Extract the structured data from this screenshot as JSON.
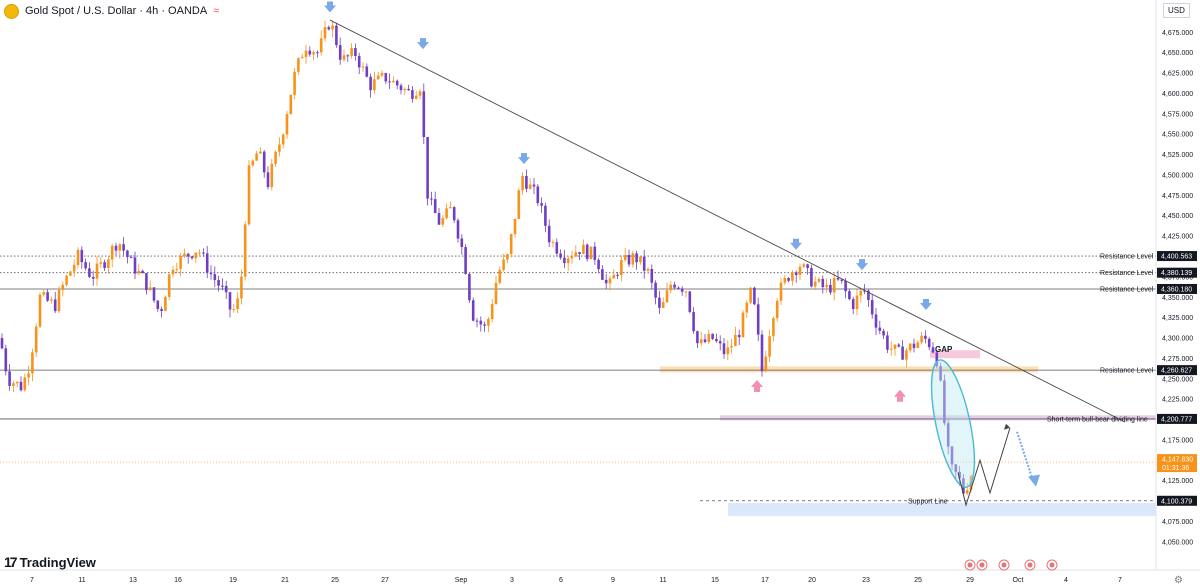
{
  "header": {
    "title": "Gold Spot / U.S. Dollar · 4h · OANDA",
    "currency": "USD"
  },
  "brand": "TradingView",
  "colors": {
    "bull": "#f7931a",
    "bear": "#6e3fc4",
    "trend": "#4a4a4a",
    "arrow_blue": "#7aa8e8",
    "arrow_pink": "#f48fb1",
    "gap_zone": "#f8c8dc",
    "support_zone": "#dbe8fb",
    "divider_zone": "#e3c6e8",
    "resistance_zone": "#fbd9a8",
    "ellipse": "#4bb9d3"
  },
  "chart_data": {
    "type": "candlestick",
    "ylim": [
      4040,
      4695
    ],
    "y_ticks": [
      "4,675.000",
      "4,650.000",
      "4,625.000",
      "4,600.000",
      "4,575.000",
      "4,550.000",
      "4,525.000",
      "4,500.000",
      "4,475.000",
      "4,450.000",
      "4,425.000",
      "4,400.000",
      "4,375.000",
      "4,350.000",
      "4,325.000",
      "4,300.000",
      "4,275.000",
      "4,250.000",
      "4,225.000",
      "4,200.000",
      "4,175.000",
      "4,150.000",
      "4,125.000",
      "4,100.000",
      "4,075.000",
      "4,050.000"
    ],
    "x_ticks": [
      "7",
      "11",
      "13",
      "16",
      "19",
      "21",
      "25",
      "27",
      "Sep",
      "3",
      "6",
      "9",
      "11",
      "15",
      "17",
      "20",
      "23",
      "25",
      "29",
      "Oct",
      "4",
      "7"
    ],
    "current_price": {
      "value": "4,147.830",
      "countdown": "01:31:36"
    },
    "levels": [
      {
        "label": "Resistance Level",
        "value": 4400.563,
        "display": "4,400.563",
        "style": "dotted"
      },
      {
        "label": "Resistance Level",
        "value": 4380.139,
        "display": "4,380.139",
        "style": "dotted"
      },
      {
        "label": "Resistance Level",
        "value": 4360.18,
        "display": "4,360.180",
        "style": "solid"
      },
      {
        "label": "Resistance Level",
        "value": 4260.627,
        "display": "4,260.627",
        "style": "solid"
      },
      {
        "label": "Short-term bull-bear dividing line",
        "value": 4200.777,
        "display": "4,200.777",
        "style": "solid"
      },
      {
        "label": "Support Line",
        "value": 4100.379,
        "display": "4,100.379",
        "style": "dashed"
      }
    ],
    "annotations": {
      "gap": "GAP"
    },
    "waypoints": [
      [
        0,
        4300
      ],
      [
        8,
        4250
      ],
      [
        22,
        4240
      ],
      [
        30,
        4270
      ],
      [
        40,
        4350
      ],
      [
        55,
        4340
      ],
      [
        65,
        4370
      ],
      [
        78,
        4400
      ],
      [
        92,
        4375
      ],
      [
        105,
        4395
      ],
      [
        118,
        4420
      ],
      [
        132,
        4390
      ],
      [
        145,
        4370
      ],
      [
        160,
        4330
      ],
      [
        172,
        4390
      ],
      [
        185,
        4400
      ],
      [
        198,
        4410
      ],
      [
        210,
        4380
      ],
      [
        222,
        4360
      ],
      [
        232,
        4330
      ],
      [
        240,
        4350
      ],
      [
        248,
        4500
      ],
      [
        258,
        4530
      ],
      [
        268,
        4490
      ],
      [
        282,
        4550
      ],
      [
        294,
        4620
      ],
      [
        305,
        4660
      ],
      [
        318,
        4650
      ],
      [
        330,
        4690
      ],
      [
        342,
        4640
      ],
      [
        355,
        4650
      ],
      [
        370,
        4610
      ],
      [
        385,
        4620
      ],
      [
        398,
        4610
      ],
      [
        410,
        4600
      ],
      [
        420,
        4610
      ],
      [
        428,
        4470
      ],
      [
        440,
        4440
      ],
      [
        452,
        4460
      ],
      [
        464,
        4400
      ],
      [
        472,
        4330
      ],
      [
        486,
        4310
      ],
      [
        498,
        4380
      ],
      [
        508,
        4400
      ],
      [
        522,
        4500
      ],
      [
        538,
        4470
      ],
      [
        550,
        4420
      ],
      [
        565,
        4400
      ],
      [
        580,
        4410
      ],
      [
        596,
        4400
      ],
      [
        608,
        4360
      ],
      [
        620,
        4390
      ],
      [
        635,
        4400
      ],
      [
        648,
        4380
      ],
      [
        660,
        4330
      ],
      [
        672,
        4370
      ],
      [
        686,
        4360
      ],
      [
        698,
        4290
      ],
      [
        712,
        4300
      ],
      [
        726,
        4280
      ],
      [
        740,
        4310
      ],
      [
        752,
        4360
      ],
      [
        762,
        4260
      ],
      [
        776,
        4350
      ],
      [
        790,
        4380
      ],
      [
        800,
        4390
      ],
      [
        812,
        4370
      ],
      [
        826,
        4360
      ],
      [
        840,
        4370
      ],
      [
        852,
        4340
      ],
      [
        864,
        4360
      ],
      [
        876,
        4320
      ],
      [
        888,
        4290
      ],
      [
        900,
        4280
      ],
      [
        912,
        4290
      ],
      [
        924,
        4300
      ],
      [
        932,
        4290
      ],
      [
        938,
        4270
      ],
      [
        944,
        4200
      ],
      [
        950,
        4140
      ],
      [
        958,
        4130
      ],
      [
        964,
        4110
      ],
      [
        970,
        4130
      ],
      [
        975,
        4147.83
      ]
    ]
  }
}
